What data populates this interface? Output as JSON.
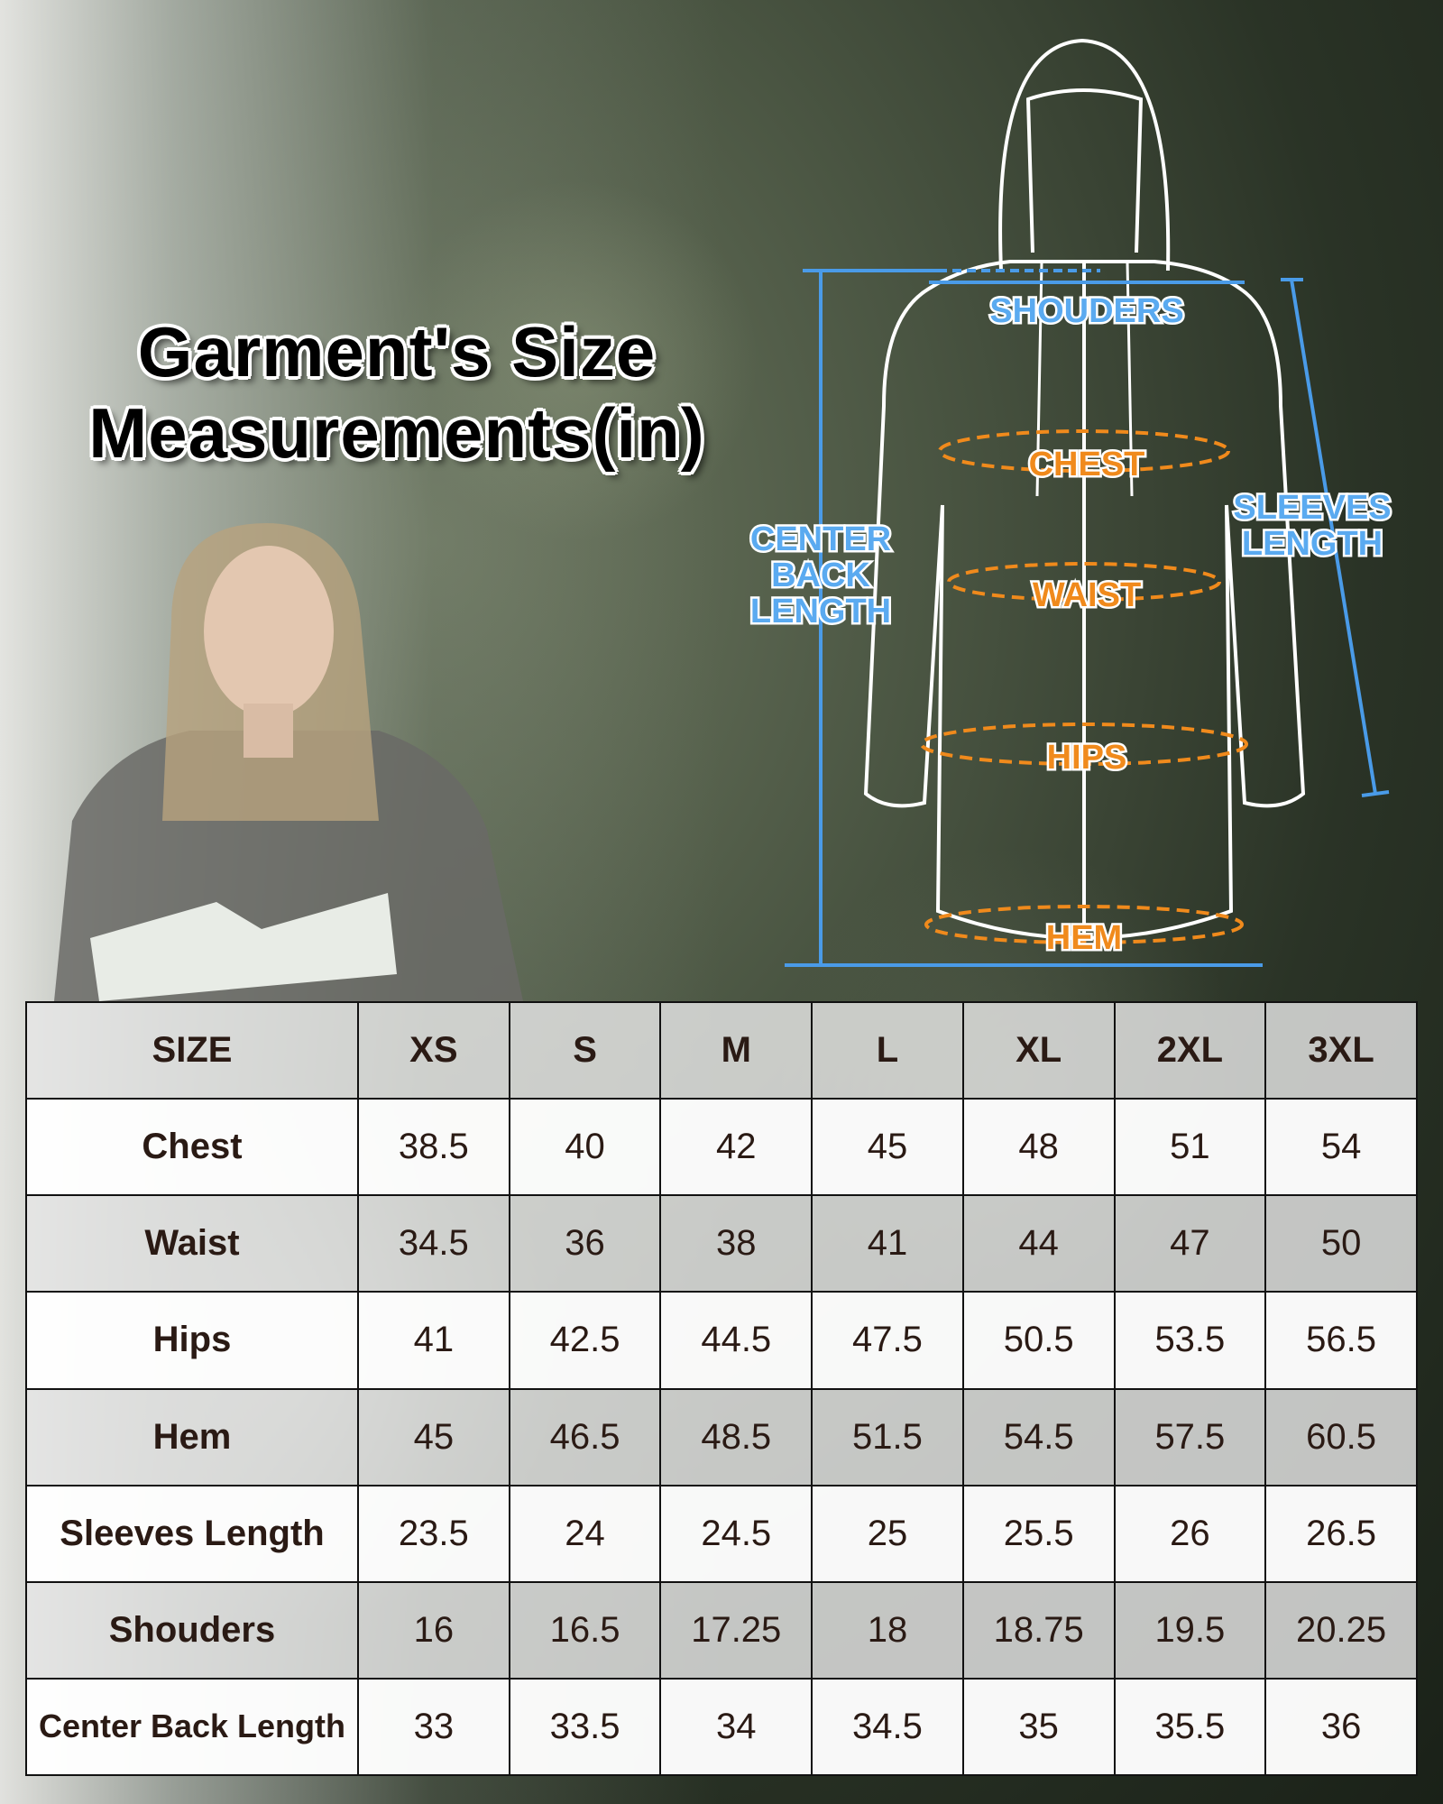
{
  "title": {
    "line1": "Garment's Size",
    "line2": "Measurements(in)"
  },
  "diagram_labels": {
    "shoulders": "SHOUDERS",
    "chest": "CHEST",
    "waist": "WAIST",
    "hips": "HIPS",
    "hem": "HEM",
    "center_back_1": "CENTER",
    "center_back_2": "BACK",
    "center_back_3": "LENGTH",
    "sleeves_1": "SLEEVES",
    "sleeves_2": "LENGTH"
  },
  "colors": {
    "blue_label": "#5aaaf0",
    "orange_label": "#f08a1c",
    "table_border": "#111111"
  },
  "table": {
    "header": [
      "SIZE",
      "XS",
      "S",
      "M",
      "L",
      "XL",
      "2XL",
      "3XL"
    ],
    "rows": [
      {
        "label": "Chest",
        "values": [
          "38.5",
          "40",
          "42",
          "45",
          "48",
          "51",
          "54"
        ]
      },
      {
        "label": "Waist",
        "values": [
          "34.5",
          "36",
          "38",
          "41",
          "44",
          "47",
          "50"
        ]
      },
      {
        "label": "Hips",
        "values": [
          "41",
          "42.5",
          "44.5",
          "47.5",
          "50.5",
          "53.5",
          "56.5"
        ]
      },
      {
        "label": "Hem",
        "values": [
          "45",
          "46.5",
          "48.5",
          "51.5",
          "54.5",
          "57.5",
          "60.5"
        ]
      },
      {
        "label": "Sleeves Length",
        "values": [
          "23.5",
          "24",
          "24.5",
          "25",
          "25.5",
          "26",
          "26.5"
        ]
      },
      {
        "label": "Shouders",
        "values": [
          "16",
          "16.5",
          "17.25",
          "18",
          "18.75",
          "19.5",
          "20.25"
        ]
      },
      {
        "label": "Center Back Length",
        "values": [
          "33",
          "33.5",
          "34",
          "34.5",
          "35",
          "35.5",
          "36"
        ]
      }
    ]
  }
}
